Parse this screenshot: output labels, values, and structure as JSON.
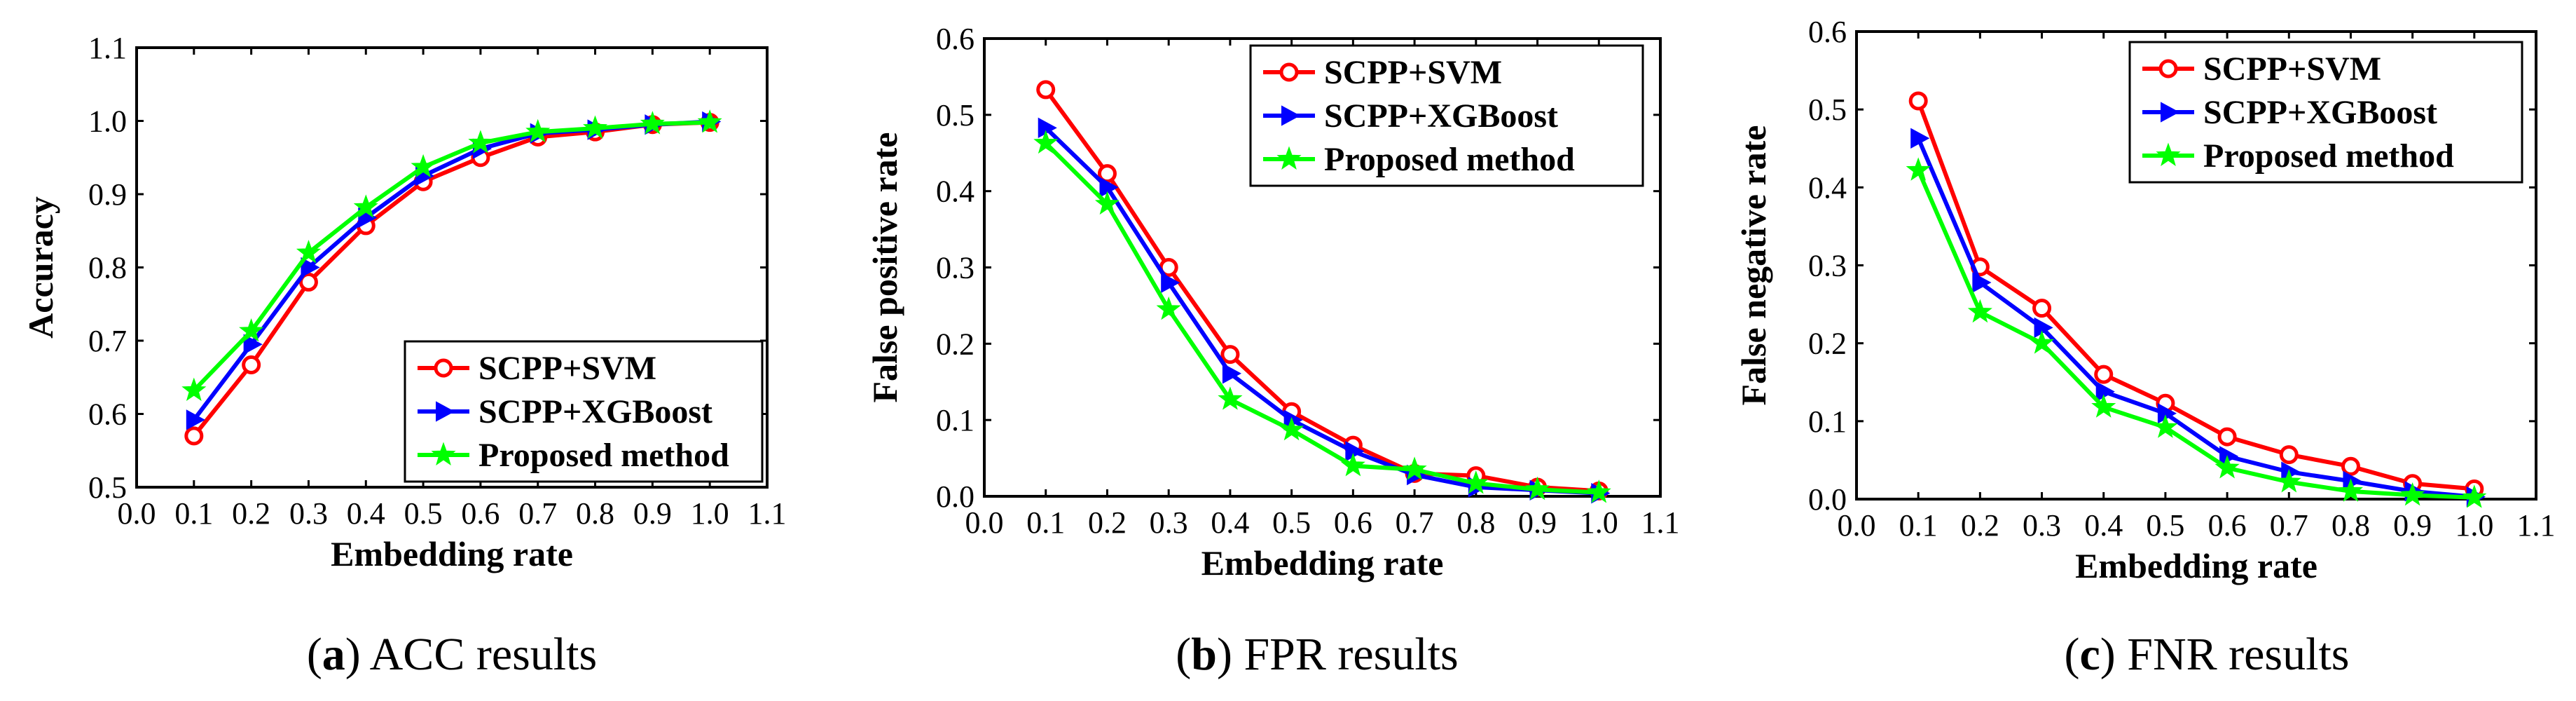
{
  "series_colors": {
    "SCPP+SVM": "#ff0000",
    "SCPP+XGBoost": "#0000ff",
    "Proposed method": "#00ff00"
  },
  "series_markers": {
    "SCPP+SVM": "circle",
    "SCPP+XGBoost": "triangle-right",
    "Proposed method": "star"
  },
  "chart_data": [
    {
      "type": "line",
      "caption_letter": "a",
      "caption_text": "ACC results",
      "xlabel": "Embedding rate",
      "ylabel": "Accuracy",
      "xlim": [
        0.0,
        1.1
      ],
      "ylim": [
        0.5,
        1.1
      ],
      "x_ticks": [
        "0.0",
        "0.1",
        "0.2",
        "0.3",
        "0.4",
        "0.5",
        "0.6",
        "0.7",
        "0.8",
        "0.9",
        "1.0",
        "1.1"
      ],
      "y_ticks": [
        "0.5",
        "0.6",
        "0.7",
        "0.8",
        "0.9",
        "1.0",
        "1.1"
      ],
      "legend_position": "bottom-right",
      "x": [
        0.1,
        0.2,
        0.3,
        0.4,
        0.5,
        0.6,
        0.7,
        0.8,
        0.9,
        1.0
      ],
      "series": [
        {
          "name": "SCPP+SVM",
          "values": [
            0.57,
            0.667,
            0.78,
            0.857,
            0.917,
            0.95,
            0.978,
            0.985,
            0.995,
            0.998
          ]
        },
        {
          "name": "SCPP+XGBoost",
          "values": [
            0.592,
            0.695,
            0.8,
            0.868,
            0.925,
            0.962,
            0.983,
            0.988,
            0.995,
            0.999
          ]
        },
        {
          "name": "Proposed method",
          "values": [
            0.632,
            0.713,
            0.82,
            0.882,
            0.937,
            0.97,
            0.985,
            0.99,
            0.996,
            0.998
          ]
        }
      ]
    },
    {
      "type": "line",
      "caption_letter": "b",
      "caption_text": "FPR results",
      "xlabel": "Embedding rate",
      "ylabel": "False positive rate",
      "xlim": [
        0.0,
        1.1
      ],
      "ylim": [
        0.0,
        0.6
      ],
      "x_ticks": [
        "0.0",
        "0.1",
        "0.2",
        "0.3",
        "0.4",
        "0.5",
        "0.6",
        "0.7",
        "0.8",
        "0.9",
        "1.0",
        "1.1"
      ],
      "y_ticks": [
        "0.0",
        "0.1",
        "0.2",
        "0.3",
        "0.4",
        "0.5",
        "0.6"
      ],
      "legend_position": "top-right",
      "x": [
        0.1,
        0.2,
        0.3,
        0.4,
        0.5,
        0.6,
        0.7,
        0.8,
        0.9,
        1.0
      ],
      "series": [
        {
          "name": "SCPP+SVM",
          "values": [
            0.533,
            0.423,
            0.3,
            0.186,
            0.111,
            0.067,
            0.03,
            0.027,
            0.012,
            0.007
          ]
        },
        {
          "name": "SCPP+XGBoost",
          "values": [
            0.483,
            0.405,
            0.28,
            0.161,
            0.1,
            0.059,
            0.028,
            0.012,
            0.008,
            0.004
          ]
        },
        {
          "name": "Proposed method",
          "values": [
            0.463,
            0.383,
            0.245,
            0.127,
            0.087,
            0.04,
            0.035,
            0.017,
            0.009,
            0.005
          ]
        }
      ]
    },
    {
      "type": "line",
      "caption_letter": "c",
      "caption_text": "FNR results",
      "xlabel": "Embedding rate",
      "ylabel": "False negative rate",
      "xlim": [
        0.0,
        1.1
      ],
      "ylim": [
        0.0,
        0.6
      ],
      "x_ticks": [
        "0.0",
        "0.1",
        "0.2",
        "0.3",
        "0.4",
        "0.5",
        "0.6",
        "0.7",
        "0.8",
        "0.9",
        "1.0",
        "1.1"
      ],
      "y_ticks": [
        "0.0",
        "0.1",
        "0.2",
        "0.3",
        "0.4",
        "0.5",
        "0.6"
      ],
      "legend_position": "top-right",
      "x": [
        0.1,
        0.2,
        0.3,
        0.4,
        0.5,
        0.6,
        0.7,
        0.8,
        0.9,
        1.0
      ],
      "series": [
        {
          "name": "SCPP+SVM",
          "values": [
            0.511,
            0.298,
            0.245,
            0.16,
            0.123,
            0.08,
            0.057,
            0.042,
            0.02,
            0.013
          ]
        },
        {
          "name": "SCPP+XGBoost",
          "values": [
            0.463,
            0.278,
            0.22,
            0.138,
            0.11,
            0.055,
            0.035,
            0.023,
            0.01,
            0.003
          ]
        },
        {
          "name": "Proposed method",
          "values": [
            0.422,
            0.24,
            0.2,
            0.118,
            0.092,
            0.04,
            0.022,
            0.01,
            0.005,
            0.002
          ]
        }
      ]
    }
  ]
}
